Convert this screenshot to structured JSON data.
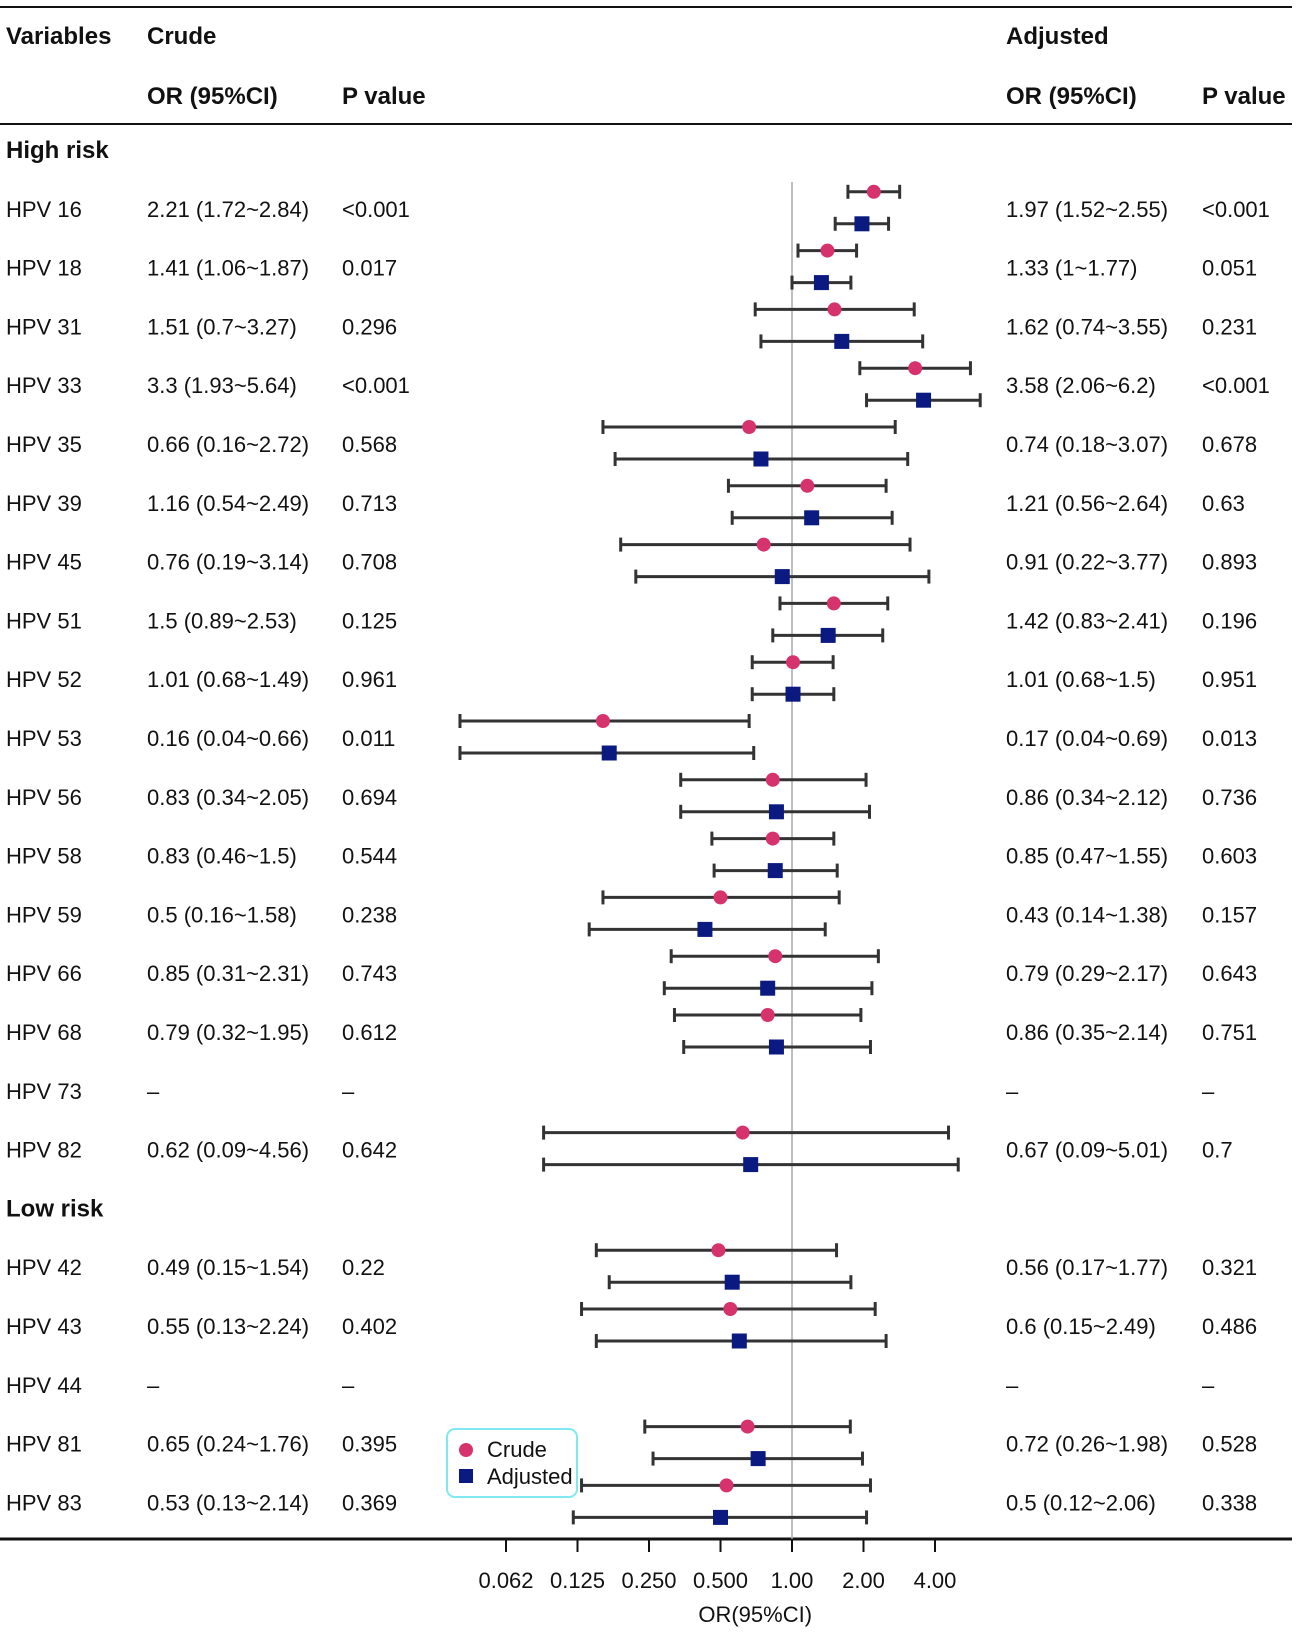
{
  "headers": {
    "variables": "Variables",
    "crude": "Crude",
    "adjusted": "Adjusted",
    "or_ci": "OR (95%CI)",
    "p_value": "P value"
  },
  "legend": {
    "crude": "Crude",
    "adjusted": "Adjusted"
  },
  "colors": {
    "crude": "#d6336c",
    "adjusted": "#0b1a80",
    "legend_border": "#7fe8f0",
    "refline": "#aaaaaa"
  },
  "chart_data": {
    "type": "forest",
    "title": "",
    "xlabel": "OR(95%CI)",
    "x_scale": "log2",
    "x_ticks": [
      0.0625,
      0.125,
      0.25,
      0.5,
      1,
      2,
      4
    ],
    "x_tick_labels": [
      "0.062",
      "0.125",
      "0.250",
      "0.500",
      "1.00",
      "2.00",
      "4.00"
    ],
    "reference_line": 1,
    "groups": [
      {
        "label": "High risk",
        "rows": [
          {
            "name": "HPV 16",
            "crude_text": "2.21 (1.72~2.84)",
            "crude_p": "<0.001",
            "adj_text": "1.97 (1.52~2.55)",
            "adj_p": "<0.001",
            "crude": [
              2.21,
              1.72,
              2.84
            ],
            "adj": [
              1.97,
              1.52,
              2.55
            ]
          },
          {
            "name": "HPV 18",
            "crude_text": "1.41 (1.06~1.87)",
            "crude_p": "0.017",
            "adj_text": "1.33 (1~1.77)",
            "adj_p": "0.051",
            "crude": [
              1.41,
              1.06,
              1.87
            ],
            "adj": [
              1.33,
              1,
              1.77
            ]
          },
          {
            "name": "HPV 31",
            "crude_text": "1.51 (0.7~3.27)",
            "crude_p": "0.296",
            "adj_text": "1.62 (0.74~3.55)",
            "adj_p": "0.231",
            "crude": [
              1.51,
              0.7,
              3.27
            ],
            "adj": [
              1.62,
              0.74,
              3.55
            ]
          },
          {
            "name": "HPV 33",
            "crude_text": "3.3 (1.93~5.64)",
            "crude_p": "<0.001",
            "adj_text": "3.58 (2.06~6.2)",
            "adj_p": "<0.001",
            "crude": [
              3.3,
              1.93,
              5.64
            ],
            "adj": [
              3.58,
              2.06,
              6.2
            ]
          },
          {
            "name": "HPV 35",
            "crude_text": "0.66 (0.16~2.72)",
            "crude_p": "0.568",
            "adj_text": "0.74 (0.18~3.07)",
            "adj_p": "0.678",
            "crude": [
              0.66,
              0.16,
              2.72
            ],
            "adj": [
              0.74,
              0.18,
              3.07
            ]
          },
          {
            "name": "HPV 39",
            "crude_text": "1.16 (0.54~2.49)",
            "crude_p": "0.713",
            "adj_text": "1.21 (0.56~2.64)",
            "adj_p": "0.63",
            "crude": [
              1.16,
              0.54,
              2.49
            ],
            "adj": [
              1.21,
              0.56,
              2.64
            ]
          },
          {
            "name": "HPV 45",
            "crude_text": "0.76 (0.19~3.14)",
            "crude_p": "0.708",
            "adj_text": "0.91 (0.22~3.77)",
            "adj_p": "0.893",
            "crude": [
              0.76,
              0.19,
              3.14
            ],
            "adj": [
              0.91,
              0.22,
              3.77
            ]
          },
          {
            "name": "HPV 51",
            "crude_text": "1.5 (0.89~2.53)",
            "crude_p": "0.125",
            "adj_text": "1.42 (0.83~2.41)",
            "adj_p": "0.196",
            "crude": [
              1.5,
              0.89,
              2.53
            ],
            "adj": [
              1.42,
              0.83,
              2.41
            ]
          },
          {
            "name": "HPV 52",
            "crude_text": "1.01 (0.68~1.49)",
            "crude_p": "0.961",
            "adj_text": "1.01 (0.68~1.5)",
            "adj_p": "0.951",
            "crude": [
              1.01,
              0.68,
              1.49
            ],
            "adj": [
              1.01,
              0.68,
              1.5
            ]
          },
          {
            "name": "HPV 53",
            "crude_text": "0.16 (0.04~0.66)",
            "crude_p": "0.011",
            "adj_text": "0.17 (0.04~0.69)",
            "adj_p": "0.013",
            "crude": [
              0.16,
              0.04,
              0.66
            ],
            "adj": [
              0.17,
              0.04,
              0.69
            ]
          },
          {
            "name": "HPV 56",
            "crude_text": "0.83 (0.34~2.05)",
            "crude_p": "0.694",
            "adj_text": "0.86 (0.34~2.12)",
            "adj_p": "0.736",
            "crude": [
              0.83,
              0.34,
              2.05
            ],
            "adj": [
              0.86,
              0.34,
              2.12
            ]
          },
          {
            "name": "HPV 58",
            "crude_text": "0.83 (0.46~1.5)",
            "crude_p": "0.544",
            "adj_text": "0.85 (0.47~1.55)",
            "adj_p": "0.603",
            "crude": [
              0.83,
              0.46,
              1.5
            ],
            "adj": [
              0.85,
              0.47,
              1.55
            ]
          },
          {
            "name": "HPV 59",
            "crude_text": "0.5 (0.16~1.58)",
            "crude_p": "0.238",
            "adj_text": "0.43 (0.14~1.38)",
            "adj_p": "0.157",
            "crude": [
              0.5,
              0.16,
              1.58
            ],
            "adj": [
              0.43,
              0.14,
              1.38
            ]
          },
          {
            "name": "HPV 66",
            "crude_text": "0.85 (0.31~2.31)",
            "crude_p": "0.743",
            "adj_text": "0.79 (0.29~2.17)",
            "adj_p": "0.643",
            "crude": [
              0.85,
              0.31,
              2.31
            ],
            "adj": [
              0.79,
              0.29,
              2.17
            ]
          },
          {
            "name": "HPV 68",
            "crude_text": "0.79 (0.32~1.95)",
            "crude_p": "0.612",
            "adj_text": "0.86 (0.35~2.14)",
            "adj_p": "0.751",
            "crude": [
              0.79,
              0.32,
              1.95
            ],
            "adj": [
              0.86,
              0.35,
              2.14
            ]
          },
          {
            "name": "HPV 73",
            "crude_text": "–",
            "crude_p": "–",
            "adj_text": "–",
            "adj_p": "–",
            "crude": null,
            "adj": null
          },
          {
            "name": "HPV 82",
            "crude_text": "0.62 (0.09~4.56)",
            "crude_p": "0.642",
            "adj_text": "0.67 (0.09~5.01)",
            "adj_p": "0.7",
            "crude": [
              0.62,
              0.09,
              4.56
            ],
            "adj": [
              0.67,
              0.09,
              5.01
            ]
          }
        ]
      },
      {
        "label": "Low risk",
        "rows": [
          {
            "name": "HPV 42",
            "crude_text": "0.49 (0.15~1.54)",
            "crude_p": "0.22",
            "adj_text": "0.56 (0.17~1.77)",
            "adj_p": "0.321",
            "crude": [
              0.49,
              0.15,
              1.54
            ],
            "adj": [
              0.56,
              0.17,
              1.77
            ]
          },
          {
            "name": "HPV 43",
            "crude_text": "0.55 (0.13~2.24)",
            "crude_p": "0.402",
            "adj_text": "0.6 (0.15~2.49)",
            "adj_p": "0.486",
            "crude": [
              0.55,
              0.13,
              2.24
            ],
            "adj": [
              0.6,
              0.15,
              2.49
            ]
          },
          {
            "name": "HPV 44",
            "crude_text": "–",
            "crude_p": "–",
            "adj_text": "–",
            "adj_p": "–",
            "crude": null,
            "adj": null
          },
          {
            "name": "HPV 81",
            "crude_text": "0.65 (0.24~1.76)",
            "crude_p": "0.395",
            "adj_text": "0.72 (0.26~1.98)",
            "adj_p": "0.528",
            "crude": [
              0.65,
              0.24,
              1.76
            ],
            "adj": [
              0.72,
              0.26,
              1.98
            ]
          },
          {
            "name": "HPV 83",
            "crude_text": "0.53 (0.13~2.14)",
            "crude_p": "0.369",
            "adj_text": "0.5 (0.12~2.06)",
            "adj_p": "0.338",
            "crude": [
              0.53,
              0.13,
              2.14
            ],
            "adj": [
              0.5,
              0.12,
              2.06
            ]
          }
        ]
      }
    ]
  }
}
